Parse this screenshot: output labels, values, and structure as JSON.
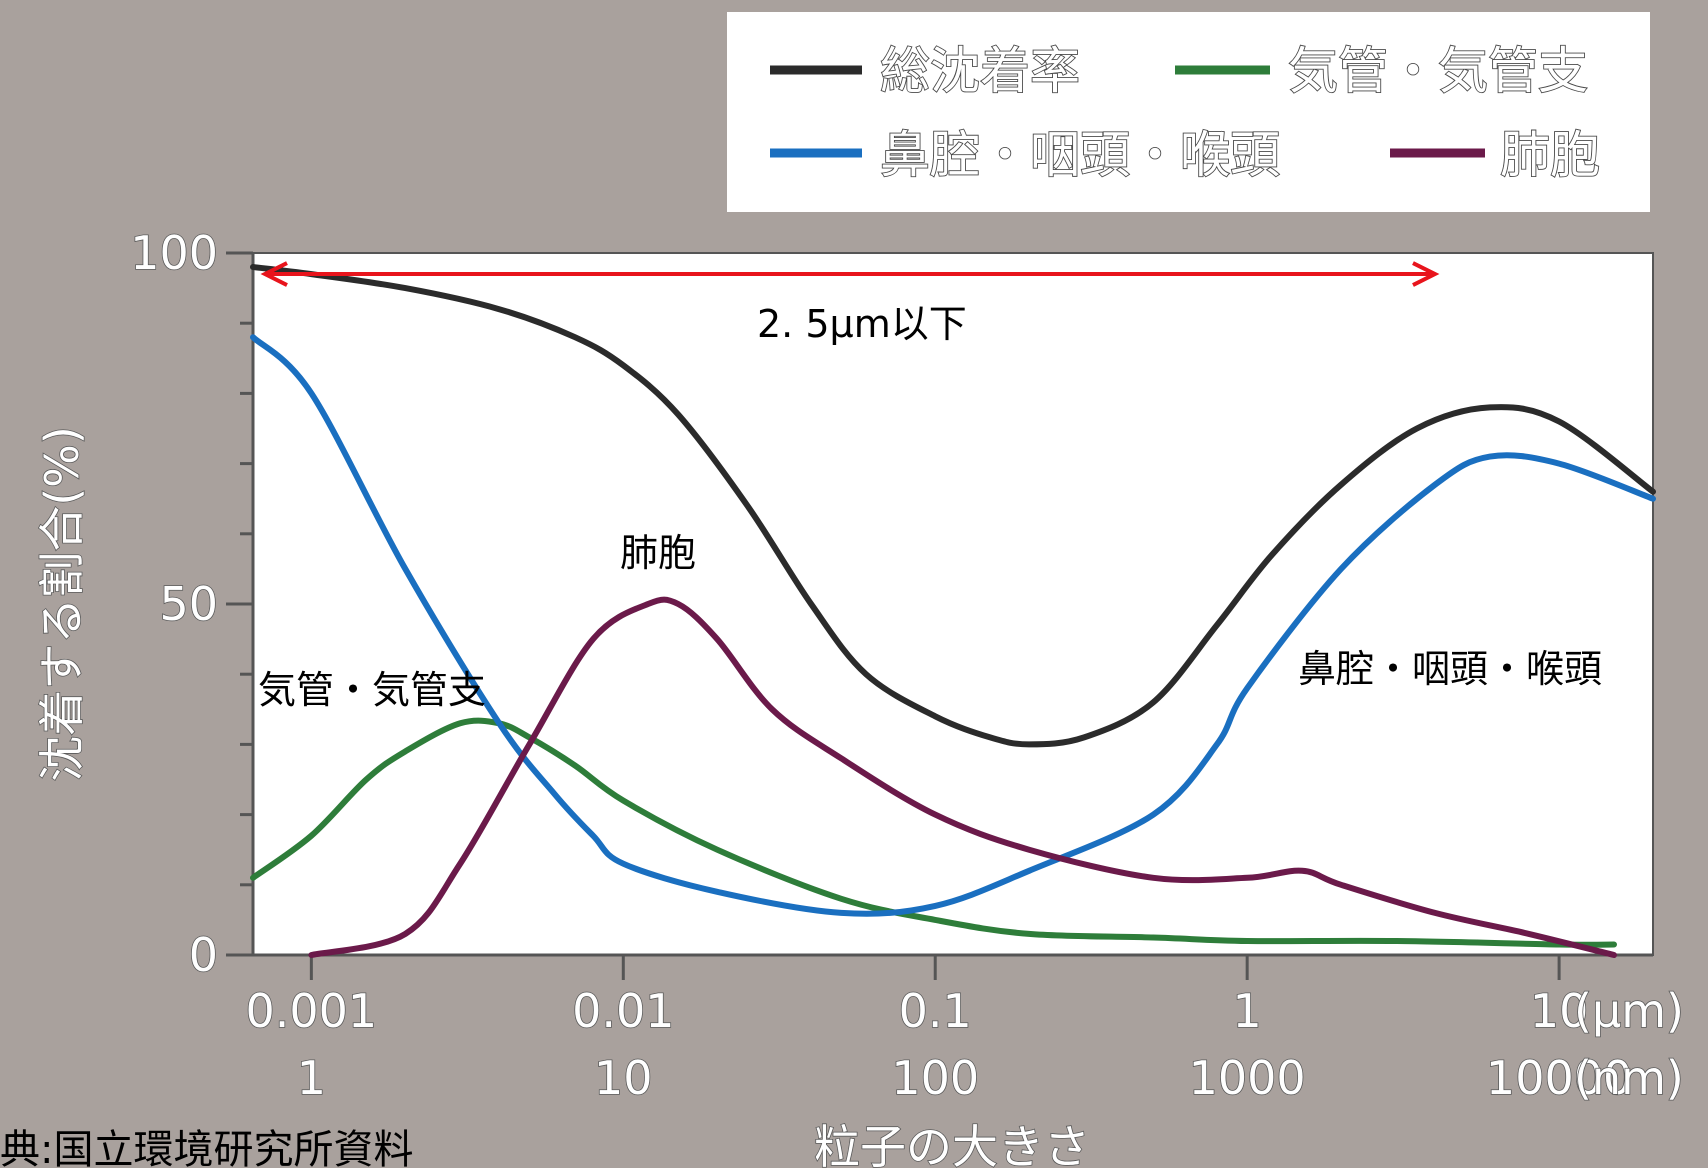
{
  "chart_data": {
    "type": "line",
    "xscale": "log",
    "xlim": [
      0.00065,
      20
    ],
    "ylim": [
      0,
      100
    ],
    "ylabel": "沈着する割合(%)",
    "xlabel": "粒子の大きさ",
    "x_unit_top": "(μm)",
    "x_unit_bottom": "(nm)",
    "x_ticks_um": [
      0.001,
      0.01,
      0.1,
      1,
      10
    ],
    "x_tick_labels_um": [
      "0.001",
      "0.01",
      "0.1",
      "1",
      "10"
    ],
    "x_tick_labels_nm": [
      "1",
      "10",
      "100",
      "1000",
      "10000"
    ],
    "y_ticks": [
      0,
      50,
      100
    ],
    "y_tick_labels": [
      "0",
      "50",
      "100"
    ],
    "legend": {
      "placement": "top-right",
      "entries": [
        {
          "label": "総沈着率",
          "color": "#2b2b2b"
        },
        {
          "label": "気管・気管支",
          "color": "#2e7d3a"
        },
        {
          "label": "鼻腔・咽頭・喉頭",
          "color": "#1a6fc0"
        },
        {
          "label": "肺胞",
          "color": "#6b1a4a"
        }
      ]
    },
    "series": [
      {
        "name": "総沈着率",
        "color": "#2b2b2b",
        "x": [
          0.00065,
          0.001,
          0.002,
          0.004,
          0.007,
          0.01,
          0.015,
          0.025,
          0.04,
          0.06,
          0.1,
          0.15,
          0.2,
          0.3,
          0.5,
          0.8,
          1.2,
          2,
          3.5,
          6,
          10,
          20
        ],
        "y": [
          98,
          97,
          95,
          92,
          88,
          84,
          77,
          64,
          50,
          40,
          34,
          31,
          30,
          31,
          36,
          47,
          57,
          67,
          75,
          78,
          76,
          66
        ]
      },
      {
        "name": "気管・気管支",
        "color": "#2e7d3a",
        "x": [
          0.00065,
          0.001,
          0.0015,
          0.002,
          0.003,
          0.004,
          0.005,
          0.007,
          0.01,
          0.02,
          0.05,
          0.1,
          0.2,
          0.5,
          1,
          3,
          10,
          15
        ],
        "y": [
          11,
          17,
          25,
          29,
          33,
          33,
          31,
          27,
          22,
          15,
          8,
          5,
          3,
          2.5,
          2,
          2,
          1.5,
          1.5
        ]
      },
      {
        "name": "鼻腔・咽頭・喉頭",
        "color": "#1a6fc0",
        "x": [
          0.00065,
          0.001,
          0.002,
          0.004,
          0.006,
          0.008,
          0.01,
          0.02,
          0.05,
          0.1,
          0.2,
          0.5,
          0.8,
          1,
          2,
          4,
          6,
          10,
          20
        ],
        "y": [
          88,
          80,
          55,
          33,
          23,
          17,
          13,
          9,
          6,
          7,
          12,
          20,
          30,
          38,
          55,
          67,
          71,
          70,
          65
        ]
      },
      {
        "name": "肺胞",
        "color": "#6b1a4a",
        "x": [
          0.001,
          0.002,
          0.003,
          0.005,
          0.008,
          0.012,
          0.015,
          0.02,
          0.03,
          0.05,
          0.1,
          0.2,
          0.5,
          1,
          1.5,
          2,
          4,
          8,
          15
        ],
        "y": [
          0,
          3,
          13,
          30,
          45,
          50,
          50,
          45,
          35,
          28,
          20,
          15,
          11,
          11,
          12,
          10,
          6,
          3,
          0
        ]
      }
    ],
    "annotations": [
      {
        "text": "2. 5μm以下",
        "type": "range-arrow",
        "x_start": 0.00065,
        "x_end": 4,
        "y": 97,
        "color": "#e8141c"
      },
      {
        "text": "肺胞",
        "label_for": "肺胞"
      },
      {
        "text": "気管・気管支",
        "label_for": "気管・気管支"
      },
      {
        "text": "鼻腔・咽頭・喉頭",
        "label_for": "鼻腔・咽頭・喉頭"
      }
    ],
    "grid": false
  },
  "source": "典:国立環境研究所資料"
}
